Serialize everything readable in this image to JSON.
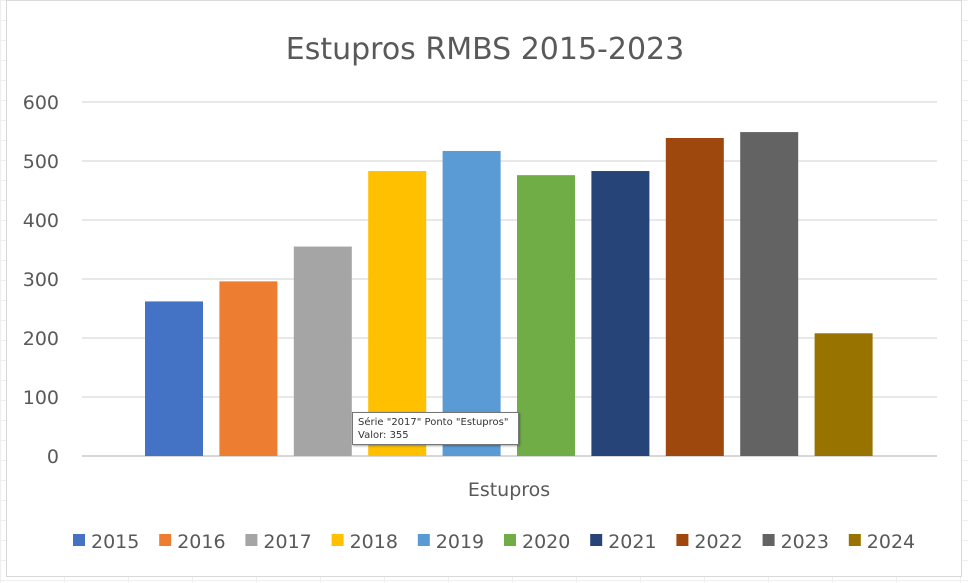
{
  "chart_data": {
    "type": "bar",
    "title": "Estupros RMBS 2015-2023",
    "xlabel": "Estupros",
    "ylabel": "",
    "ylim": [
      0,
      600
    ],
    "yticks": [
      0,
      100,
      200,
      300,
      400,
      500,
      600
    ],
    "grid": true,
    "legend_position": "bottom",
    "categories": [
      "Estupros"
    ],
    "series": [
      {
        "name": "2015",
        "values": [
          262
        ],
        "color": "#4472C4"
      },
      {
        "name": "2016",
        "values": [
          296
        ],
        "color": "#ED7D31"
      },
      {
        "name": "2017",
        "values": [
          355
        ],
        "color": "#A5A5A5"
      },
      {
        "name": "2018",
        "values": [
          483
        ],
        "color": "#FFC000"
      },
      {
        "name": "2019",
        "values": [
          517
        ],
        "color": "#5B9BD5"
      },
      {
        "name": "2020",
        "values": [
          476
        ],
        "color": "#70AD47"
      },
      {
        "name": "2021",
        "values": [
          483
        ],
        "color": "#264478"
      },
      {
        "name": "2022",
        "values": [
          539
        ],
        "color": "#9E480E"
      },
      {
        "name": "2023",
        "values": [
          549
        ],
        "color": "#636363"
      },
      {
        "name": "2024",
        "values": [
          208
        ],
        "color": "#997300"
      }
    ]
  },
  "tooltip": {
    "line1": "Série \"2017\" Ponto \"Estupros\"",
    "line2": "Valor: 355"
  }
}
